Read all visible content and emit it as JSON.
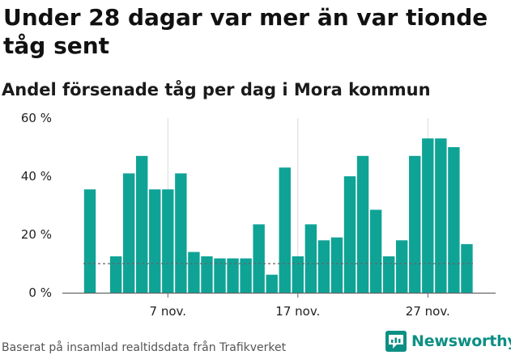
{
  "header": {
    "title": "Under 28 dagar var mer än var tionde tåg sent",
    "subtitle": "Andel försenade tåg per dag i Mora kommun"
  },
  "footer": {
    "source": "Baserat på insamlad realtidsdata från Trafikverket",
    "brand": "Newsworthy"
  },
  "colors": {
    "bar": "#0fa396",
    "grid": "#d9d9d9",
    "baseline": "#666666",
    "reference_line": "#666666",
    "brand": "#0c8f84"
  },
  "icons": {
    "brand_logo": "newsworthy-logo-icon"
  },
  "chart_data": {
    "type": "bar",
    "title": "Andel försenade tåg per dag i Mora kommun",
    "xlabel": "",
    "ylabel": "",
    "unit": "%",
    "ylim": [
      0,
      60
    ],
    "yticks": [
      0,
      20,
      40,
      60
    ],
    "ytick_labels": [
      "0 %",
      "20 %",
      "40 %",
      "60 %"
    ],
    "xtick_labels": [
      {
        "label": "7 nov.",
        "category": "2023-11-07"
      },
      {
        "label": "17 nov.",
        "category": "2023-11-17"
      },
      {
        "label": "27 nov.",
        "category": "2023-11-27"
      }
    ],
    "grid": "vertical",
    "reference_line": {
      "value": 10,
      "style": "dashed"
    },
    "categories": [
      "2023-11-01",
      "2023-11-02",
      "2023-11-03",
      "2023-11-04",
      "2023-11-05",
      "2023-11-06",
      "2023-11-07",
      "2023-11-08",
      "2023-11-09",
      "2023-11-10",
      "2023-11-11",
      "2023-11-12",
      "2023-11-13",
      "2023-11-14",
      "2023-11-15",
      "2023-11-16",
      "2023-11-17",
      "2023-11-18",
      "2023-11-19",
      "2023-11-20",
      "2023-11-21",
      "2023-11-22",
      "2023-11-23",
      "2023-11-24",
      "2023-11-25",
      "2023-11-26",
      "2023-11-27",
      "2023-11-28",
      "2023-11-29",
      "2023-11-30"
    ],
    "values": [
      35.5,
      0,
      12.5,
      41,
      47,
      35.5,
      35.5,
      41,
      14,
      12.5,
      11.8,
      11.8,
      11.8,
      23.5,
      6.2,
      43,
      12.5,
      23.5,
      18,
      19,
      40,
      47,
      28.5,
      12.5,
      18,
      47,
      53,
      53,
      50,
      16.7
    ]
  }
}
